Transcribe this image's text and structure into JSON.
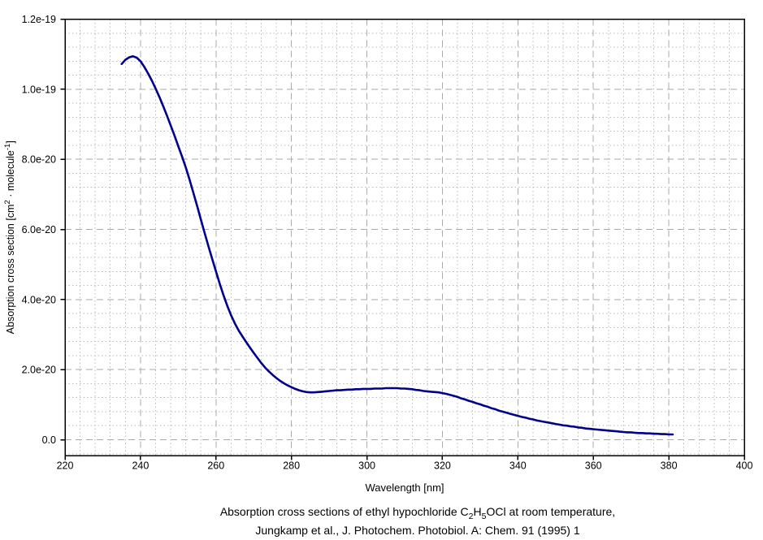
{
  "page": {
    "background": "#ffffff"
  },
  "caption": {
    "line1_prefix": "Absorption cross sections of ethyl hypochloride C",
    "line1_sub1": "2",
    "line1_mid": "H",
    "line1_sub2": "5",
    "line1_suffix": "OCl at room temperature,",
    "line2": "Jungkamp et al., J. Photochem. Photobiol. A: Chem. 91 (1995) 1"
  },
  "chart_data": {
    "type": "line",
    "title": "",
    "xlabel": "Wavelength [nm]",
    "ylabel_parts": {
      "a": "Absorption cross section [cm",
      "sup1": "2",
      "b": " · molecule",
      "sup2": "-1",
      "c": "]"
    },
    "xlim": [
      220,
      400
    ],
    "ylim_1e20": [
      -0.45,
      12
    ],
    "x_major_step": 20,
    "x_minor_step": 4,
    "y_major_step_1e20": 2,
    "y_minor_step_1e20": 0.4,
    "grid": {
      "major": "dashed",
      "minor": "dotted",
      "on": true
    },
    "legend": "none",
    "colors": {
      "line": "#00008B",
      "grid_major": "#aaaaaa",
      "grid_minor": "#bababa",
      "axis": "#000000",
      "text": "#000000"
    },
    "x_ticks": [
      220,
      240,
      260,
      280,
      300,
      320,
      340,
      360,
      380,
      400
    ],
    "y_ticks": [
      {
        "v": 0,
        "label": "0.0"
      },
      {
        "v": 2,
        "label": "2.0e-20"
      },
      {
        "v": 4,
        "label": "4.0e-20"
      },
      {
        "v": 6,
        "label": "6.0e-20"
      },
      {
        "v": 8,
        "label": "8.0e-20"
      },
      {
        "v": 10,
        "label": "1.0e-19"
      },
      {
        "v": 12,
        "label": "1.2e-19"
      }
    ],
    "y_units": "cm^2 molecule^-1 (y values given in units of 1e-20)",
    "series": [
      {
        "name": "C2H5OCl absorption cross section",
        "x": [
          235,
          236,
          237,
          238,
          239,
          240,
          241,
          242,
          243,
          244,
          245,
          246,
          247,
          248,
          249,
          250,
          251,
          252,
          253,
          254,
          255,
          256,
          257,
          258,
          259,
          260,
          261,
          262,
          263,
          264,
          265,
          266,
          267,
          268,
          269,
          270,
          271,
          272,
          273,
          274,
          275,
          276,
          277,
          278,
          279,
          280,
          281,
          282,
          283,
          284,
          285,
          286,
          287,
          288,
          289,
          290,
          291,
          292,
          293,
          294,
          295,
          296,
          297,
          298,
          299,
          300,
          301,
          302,
          303,
          304,
          305,
          306,
          307,
          308,
          309,
          310,
          311,
          312,
          313,
          314,
          315,
          316,
          317,
          318,
          319,
          320,
          321,
          322,
          323,
          324,
          325,
          326,
          327,
          328,
          329,
          330,
          331,
          332,
          333,
          334,
          335,
          336,
          337,
          338,
          339,
          340,
          341,
          342,
          343,
          344,
          345,
          346,
          347,
          348,
          349,
          350,
          351,
          352,
          353,
          354,
          355,
          356,
          357,
          358,
          359,
          360,
          361,
          362,
          363,
          364,
          365,
          366,
          367,
          368,
          369,
          370,
          371,
          372,
          373,
          374,
          375,
          376,
          377,
          378,
          379,
          380,
          381
        ],
        "y_1e20": [
          10.72,
          10.84,
          10.91,
          10.94,
          10.9,
          10.8,
          10.64,
          10.45,
          10.25,
          10.02,
          9.78,
          9.52,
          9.25,
          8.97,
          8.68,
          8.38,
          8.08,
          7.77,
          7.42,
          7.05,
          6.67,
          6.28,
          5.9,
          5.52,
          5.16,
          4.8,
          4.45,
          4.12,
          3.82,
          3.55,
          3.32,
          3.12,
          2.95,
          2.79,
          2.63,
          2.48,
          2.33,
          2.19,
          2.06,
          1.95,
          1.85,
          1.76,
          1.68,
          1.61,
          1.55,
          1.5,
          1.45,
          1.41,
          1.38,
          1.36,
          1.35,
          1.35,
          1.36,
          1.37,
          1.38,
          1.39,
          1.4,
          1.41,
          1.41,
          1.42,
          1.43,
          1.43,
          1.44,
          1.44,
          1.45,
          1.45,
          1.45,
          1.46,
          1.46,
          1.46,
          1.47,
          1.47,
          1.47,
          1.47,
          1.46,
          1.46,
          1.45,
          1.44,
          1.42,
          1.41,
          1.39,
          1.38,
          1.37,
          1.36,
          1.35,
          1.33,
          1.31,
          1.28,
          1.25,
          1.22,
          1.18,
          1.15,
          1.11,
          1.08,
          1.04,
          1.01,
          0.97,
          0.94,
          0.9,
          0.87,
          0.83,
          0.8,
          0.77,
          0.74,
          0.71,
          0.68,
          0.65,
          0.63,
          0.6,
          0.58,
          0.55,
          0.53,
          0.51,
          0.49,
          0.47,
          0.45,
          0.43,
          0.41,
          0.4,
          0.38,
          0.37,
          0.35,
          0.34,
          0.32,
          0.31,
          0.3,
          0.29,
          0.28,
          0.27,
          0.26,
          0.25,
          0.24,
          0.23,
          0.22,
          0.21,
          0.21,
          0.2,
          0.19,
          0.19,
          0.18,
          0.18,
          0.17,
          0.17,
          0.16,
          0.16,
          0.15,
          0.15
        ]
      }
    ]
  }
}
